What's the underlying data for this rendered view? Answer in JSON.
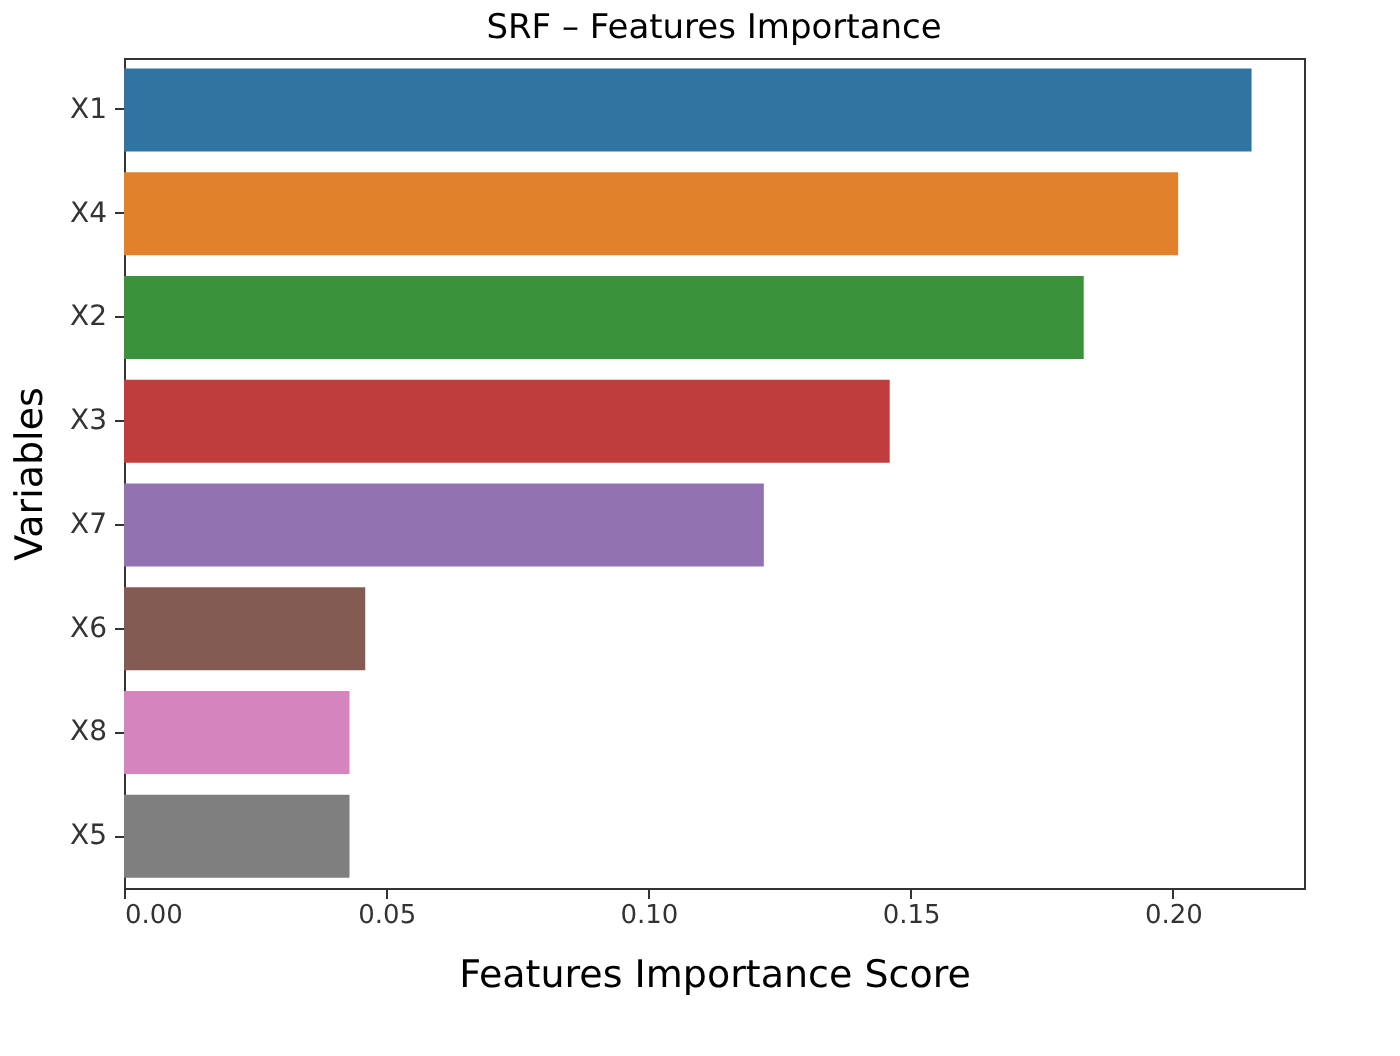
{
  "chart_data": {
    "type": "bar",
    "orientation": "horizontal",
    "title": "SRF – Features Importance",
    "xlabel": "Features Importance Score",
    "ylabel": "Variables",
    "categories": [
      "X1",
      "X4",
      "X2",
      "X3",
      "X7",
      "X6",
      "X8",
      "X5"
    ],
    "values": [
      0.215,
      0.201,
      0.183,
      0.146,
      0.122,
      0.046,
      0.043,
      0.043
    ],
    "colors": [
      "#3274a1",
      "#e1812c",
      "#3a923a",
      "#c03d3e",
      "#9372b2",
      "#845b53",
      "#d684bd",
      "#7f7f7f"
    ],
    "xlim": [
      0,
      0.225
    ],
    "xticks": [
      {
        "value": 0,
        "label": "0.00"
      },
      {
        "value": 0.05,
        "label": "0.05"
      },
      {
        "value": 0.1,
        "label": "0.10"
      },
      {
        "value": 0.15,
        "label": "0.15"
      },
      {
        "value": 0.2,
        "label": "0.20"
      }
    ],
    "grid": false,
    "legend": false
  }
}
